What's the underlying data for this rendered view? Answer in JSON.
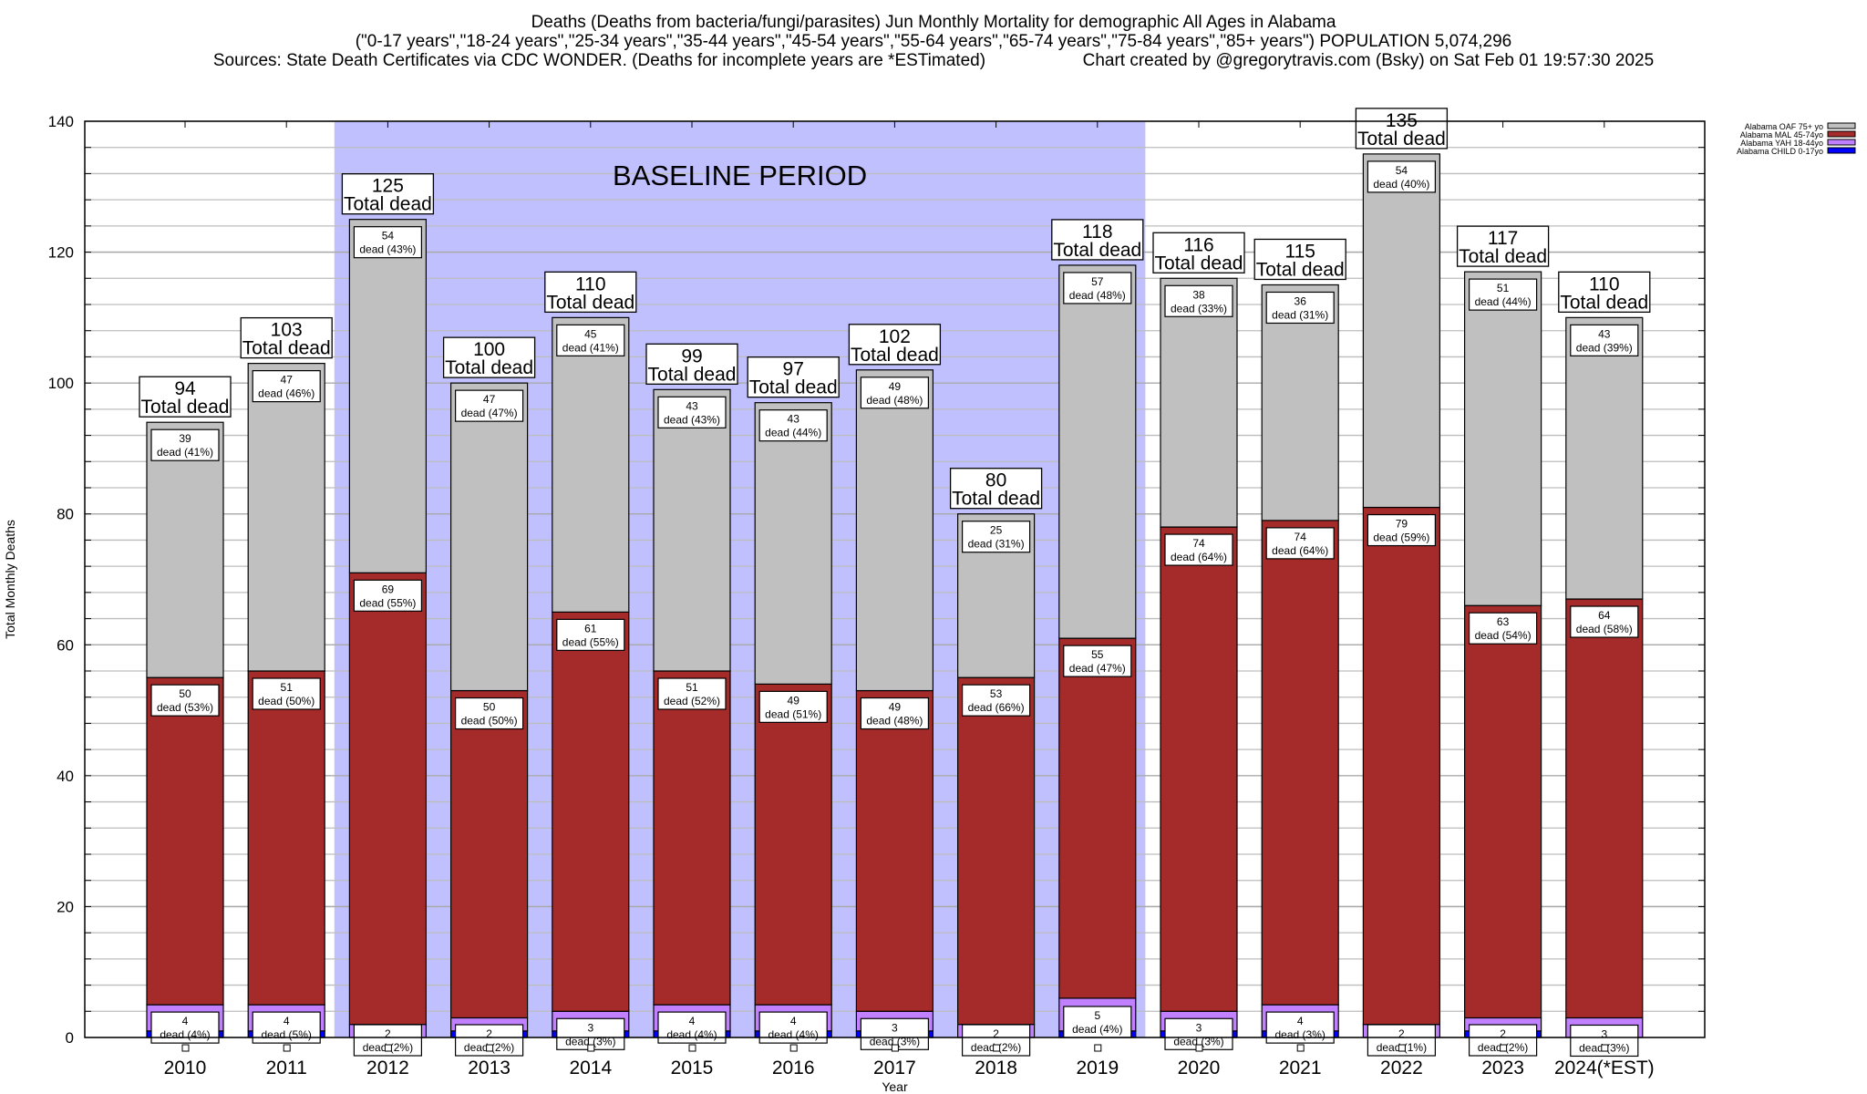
{
  "header": {
    "title_line1": "Deaths (Deaths from bacteria/fungi/parasites) Jun Monthly Mortality for demographic All Ages in Alabama",
    "title_line2": "(\"0-17 years\",\"18-24 years\",\"25-34 years\",\"35-44 years\",\"45-54 years\",\"55-64 years\",\"65-74 years\",\"75-84 years\",\"85+ years\") POPULATION 5,074,296",
    "title_line3_left": "Sources: State Death Certificates via CDC WONDER. (Deaths for incomplete years are *ESTimated)",
    "title_line3_right": "Chart created by @gregorytravis.com (Bsky) on Sat Feb 01 19:57:30 2025"
  },
  "chart_data": {
    "type": "bar",
    "stacked": true,
    "xlabel": "Year",
    "ylabel": "Total Monthly Deaths",
    "ylim": [
      0,
      140
    ],
    "yticks": [
      0,
      20,
      40,
      60,
      80,
      100,
      120,
      140
    ],
    "grid": true,
    "legend_position": "top-right",
    "annotation": {
      "text": "BASELINE PERIOD",
      "from_category": "2012",
      "to_category": "2019",
      "color": "#c0c0ff"
    },
    "total_label_suffix": "Total dead",
    "segment_label_word": "dead",
    "categories": [
      "2010",
      "2011",
      "2012",
      "2013",
      "2014",
      "2015",
      "2016",
      "2017",
      "2018",
      "2019",
      "2020",
      "2021",
      "2022",
      "2023",
      "2024(*EST)"
    ],
    "totals": [
      94,
      103,
      125,
      100,
      110,
      99,
      97,
      102,
      80,
      118,
      116,
      115,
      135,
      117,
      110
    ],
    "series": [
      {
        "name": "Alabama CHILD 0-17yo",
        "color": "#0000ff",
        "values": [
          1,
          1,
          0,
          1,
          1,
          1,
          1,
          1,
          0,
          1,
          1,
          1,
          0,
          1,
          0
        ]
      },
      {
        "name": "Alabama YAH 18-44yo",
        "color": "#c080ff",
        "values": [
          4,
          4,
          2,
          2,
          3,
          4,
          4,
          3,
          2,
          5,
          3,
          4,
          2,
          2,
          3
        ],
        "percents": [
          "4%",
          "5%",
          "2%",
          "2%",
          "3%",
          "4%",
          "4%",
          "3%",
          "2%",
          "4%",
          "3%",
          "3%",
          "1%",
          "2%",
          "3%"
        ]
      },
      {
        "name": "Alabama MAL 45-74yo",
        "color": "#a52a2a",
        "values": [
          50,
          51,
          69,
          50,
          61,
          51,
          49,
          49,
          53,
          55,
          74,
          74,
          79,
          63,
          64
        ],
        "percents": [
          "53%",
          "50%",
          "55%",
          "50%",
          "55%",
          "52%",
          "51%",
          "48%",
          "66%",
          "47%",
          "64%",
          "64%",
          "59%",
          "54%",
          "58%"
        ]
      },
      {
        "name": "Alabama OAF 75+ yo",
        "color": "#c0c0c0",
        "values": [
          39,
          47,
          54,
          47,
          45,
          43,
          43,
          49,
          25,
          57,
          38,
          36,
          54,
          51,
          43
        ],
        "percents": [
          "41%",
          "46%",
          "43%",
          "47%",
          "41%",
          "43%",
          "44%",
          "48%",
          "31%",
          "48%",
          "33%",
          "31%",
          "40%",
          "44%",
          "39%"
        ]
      }
    ]
  }
}
